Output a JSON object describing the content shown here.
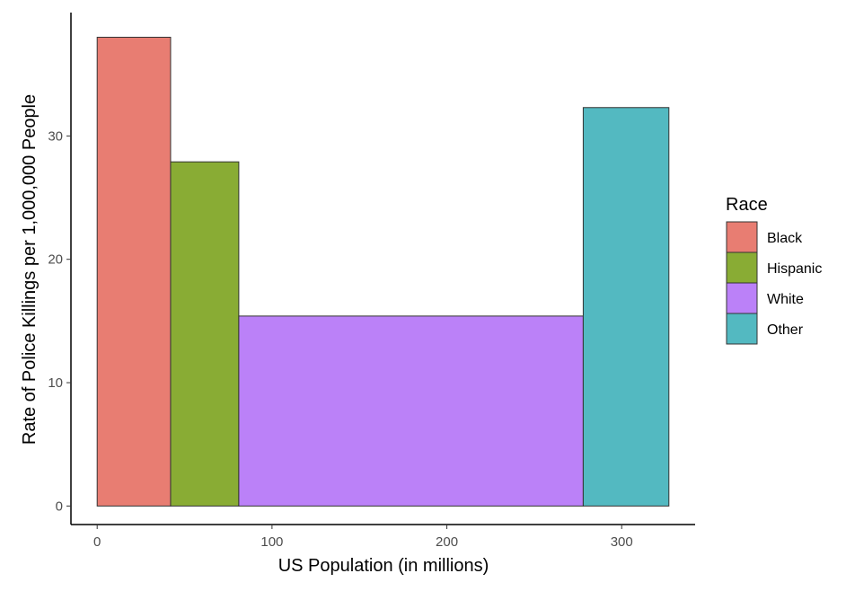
{
  "chart_data": {
    "type": "bar",
    "subtype": "variable-width (marimekko)",
    "xlabel": "US Population (in millions)",
    "ylabel": "Rate of Police Killings per 1,000,000 People",
    "xlim": [
      -15,
      342
    ],
    "ylim": [
      -1.5,
      40
    ],
    "x_ticks": [
      0,
      100,
      200,
      300
    ],
    "y_ticks": [
      0,
      10,
      20,
      30
    ],
    "grid": false,
    "legend": {
      "title": "Race",
      "position": "right"
    },
    "series": [
      {
        "name": "Black",
        "x_start": 0,
        "x_end": 42,
        "value": 38.0,
        "color": "#E87D72"
      },
      {
        "name": "Hispanic",
        "x_start": 42,
        "x_end": 81,
        "value": 27.9,
        "color": "#89AC34"
      },
      {
        "name": "White",
        "x_start": 81,
        "x_end": 278,
        "value": 15.4,
        "color": "#BB81F8"
      },
      {
        "name": "Other",
        "x_start": 278,
        "x_end": 327,
        "value": 32.3,
        "color": "#53B9C1"
      }
    ]
  }
}
